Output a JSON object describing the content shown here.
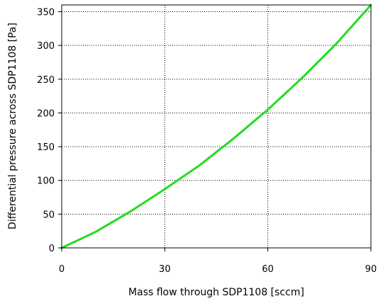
{
  "chart_data": {
    "type": "line",
    "title": "",
    "xlabel": "Mass flow through SDP1108 [sccm]",
    "ylabel": "Differential pressure across SDP1108  [Pa]",
    "xlim": [
      0,
      90
    ],
    "ylim": [
      0,
      360
    ],
    "xticks": [
      0,
      30,
      60,
      90
    ],
    "yticks": [
      0,
      50,
      100,
      150,
      200,
      250,
      300,
      350
    ],
    "grid": true,
    "legend": "none",
    "series": [
      {
        "color": "#22dd22",
        "x": [
          0,
          10,
          20,
          30,
          40,
          50,
          60,
          70,
          80,
          90
        ],
        "y": [
          0,
          24,
          54,
          87,
          122,
          162,
          205,
          252,
          303,
          360
        ]
      }
    ]
  }
}
